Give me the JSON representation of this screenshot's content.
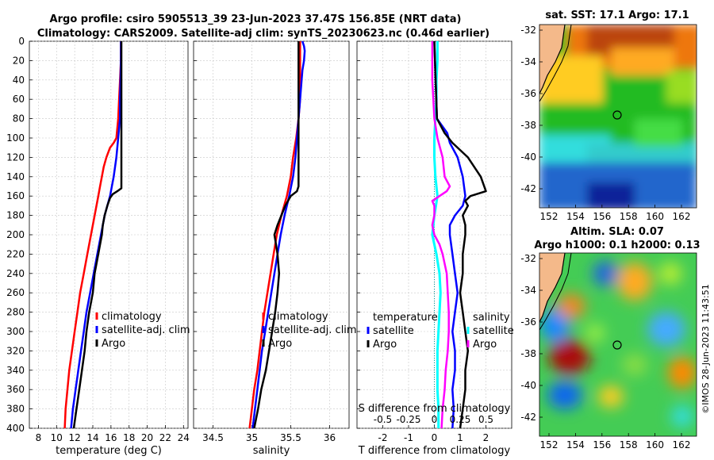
{
  "header": {
    "title_line1": "Argo profile: csiro 5905513_39 23-Jun-2023 37.47S 156.85E (NRT data)",
    "title_line2": "Climatology: CARS2009. Satellite-adj clim: synTS_20230623.nc (0.46d earlier)"
  },
  "depth_ticks": [
    "0",
    "20",
    "40",
    "60",
    "80",
    "100",
    "120",
    "140",
    "160",
    "180",
    "200",
    "220",
    "240",
    "260",
    "280",
    "300",
    "320",
    "340",
    "360",
    "380",
    "400"
  ],
  "colors": {
    "climatology": "#ff0000",
    "satellite": "#0000ff",
    "argo": "#000000",
    "sal_diff": "#ff00ff",
    "sal_sat": "#00ffff",
    "zero_line": "#00aaaa"
  },
  "chart_data": [
    {
      "type": "line",
      "panel": "temperature",
      "xlabel": "temperature (deg C)",
      "ylabel": "depth",
      "xlim": [
        7,
        24.5
      ],
      "ylim": [
        400,
        0
      ],
      "xticks": [
        "8",
        "10",
        "12",
        "14",
        "16",
        "18",
        "20",
        "22",
        "24"
      ],
      "xtick_values": [
        8,
        10,
        12,
        14,
        16,
        18,
        20,
        22,
        24
      ],
      "grid": true,
      "legend": [
        "climatology",
        "satellite-adj. clim",
        "Argo"
      ],
      "series": [
        {
          "name": "climatology",
          "depth": [
            0,
            10,
            20,
            40,
            60,
            80,
            100,
            105,
            110,
            120,
            130,
            140,
            150,
            160,
            180,
            200,
            220,
            240,
            260,
            280,
            300,
            320,
            340,
            360,
            380,
            400
          ],
          "values": [
            17.1,
            17.1,
            17.1,
            17.0,
            16.9,
            16.8,
            16.6,
            16.3,
            15.9,
            15.5,
            15.2,
            15.0,
            14.8,
            14.6,
            14.2,
            13.8,
            13.4,
            13.0,
            12.6,
            12.3,
            12.0,
            11.7,
            11.4,
            11.2,
            11.0,
            10.9
          ]
        },
        {
          "name": "satellite-adj. clim",
          "depth": [
            0,
            20,
            40,
            60,
            80,
            90,
            100,
            120,
            140,
            160,
            180,
            200,
            220,
            240,
            260,
            280,
            300,
            320,
            340,
            360,
            380,
            400
          ],
          "values": [
            17.1,
            17.1,
            17.05,
            17.0,
            17.0,
            16.9,
            16.8,
            16.6,
            16.3,
            15.9,
            15.3,
            14.9,
            14.5,
            14.1,
            13.7,
            13.3,
            13.0,
            12.7,
            12.4,
            12.1,
            11.8,
            11.6
          ]
        },
        {
          "name": "Argo",
          "depth": [
            0,
            20,
            40,
            60,
            80,
            100,
            120,
            140,
            152,
            155,
            158,
            162,
            170,
            180,
            190,
            200,
            220,
            240,
            260,
            280,
            300,
            320,
            340,
            360,
            380,
            400
          ],
          "values": [
            17.15,
            17.15,
            17.15,
            17.15,
            17.15,
            17.15,
            17.15,
            17.15,
            17.15,
            16.7,
            16.2,
            15.9,
            15.6,
            15.3,
            15.1,
            15.0,
            14.6,
            14.2,
            14.0,
            13.6,
            13.3,
            13.1,
            12.8,
            12.5,
            12.2,
            11.9
          ]
        }
      ]
    },
    {
      "type": "line",
      "panel": "salinity",
      "xlabel": "salinity",
      "ylabel": "depth",
      "xlim": [
        34.25,
        36.25
      ],
      "ylim": [
        400,
        0
      ],
      "xticks": [
        "34.5",
        "35",
        "35.5",
        "36"
      ],
      "xtick_values": [
        34.5,
        35,
        35.5,
        36
      ],
      "grid": true,
      "legend": [
        "climatology",
        "satellite-adj. clim",
        "Argo"
      ],
      "series": [
        {
          "name": "climatology",
          "depth": [
            0,
            20,
            40,
            60,
            80,
            100,
            120,
            140,
            160,
            180,
            200,
            220,
            240,
            260,
            280,
            300,
            320,
            340,
            360,
            380,
            400
          ],
          "values": [
            35.62,
            35.62,
            35.62,
            35.62,
            35.6,
            35.57,
            35.53,
            35.5,
            35.45,
            35.38,
            35.32,
            35.28,
            35.24,
            35.2,
            35.16,
            35.13,
            35.1,
            35.07,
            35.03,
            35.0,
            34.97
          ]
        },
        {
          "name": "satellite-adj. clim",
          "depth": [
            0,
            5,
            10,
            20,
            30,
            40,
            60,
            80,
            100,
            120,
            140,
            160,
            180,
            200,
            220,
            240,
            260,
            280,
            300,
            320,
            340,
            360,
            380,
            400
          ],
          "values": [
            35.65,
            35.67,
            35.68,
            35.67,
            35.65,
            35.64,
            35.62,
            35.6,
            35.58,
            35.56,
            35.53,
            35.48,
            35.42,
            35.37,
            35.33,
            35.29,
            35.25,
            35.21,
            35.17,
            35.13,
            35.1,
            35.07,
            35.04,
            35.01
          ]
        },
        {
          "name": "Argo",
          "depth": [
            0,
            20,
            40,
            60,
            80,
            100,
            120,
            140,
            150,
            155,
            160,
            170,
            180,
            190,
            200,
            210,
            220,
            240,
            260,
            280,
            300,
            320,
            340,
            360,
            380,
            400
          ],
          "values": [
            35.6,
            35.6,
            35.6,
            35.6,
            35.6,
            35.6,
            35.6,
            35.6,
            35.6,
            35.58,
            35.5,
            35.43,
            35.38,
            35.33,
            35.29,
            35.31,
            35.33,
            35.35,
            35.33,
            35.3,
            35.26,
            35.22,
            35.18,
            35.12,
            35.08,
            35.03
          ]
        }
      ]
    },
    {
      "type": "line",
      "panel": "difference",
      "xlabel": "T difference from climatology",
      "xlabel_top": "S difference from climatology",
      "ylabel": "depth",
      "xlim": [
        -3,
        3
      ],
      "ylim": [
        400,
        0
      ],
      "xticks": [
        "-2",
        "-1",
        "0",
        "1",
        "2"
      ],
      "xtick_values": [
        -2,
        -1,
        0,
        1,
        2
      ],
      "sticks": [
        "-0.5",
        "-0.25",
        "0",
        "0.25",
        "0.5"
      ],
      "stick_values": [
        -0.5,
        -0.25,
        0,
        0.25,
        0.5
      ],
      "grid": true,
      "legend_left_title": "temperature",
      "legend_right_title": "salinity",
      "legend_left": [
        "satellite",
        "Argo"
      ],
      "legend_right": [
        "satellite",
        "Argo"
      ],
      "series": [
        {
          "name": "T satellite",
          "depth": [
            0,
            40,
            80,
            95,
            105,
            120,
            140,
            160,
            170,
            180,
            190,
            200,
            220,
            240,
            260,
            280,
            300,
            320,
            340,
            360,
            380,
            400
          ],
          "values": [
            0.0,
            0.05,
            0.1,
            0.5,
            0.6,
            0.9,
            1.1,
            1.2,
            1.1,
            0.8,
            0.6,
            0.6,
            0.7,
            0.8,
            0.9,
            0.8,
            0.7,
            0.8,
            0.8,
            0.7,
            0.75,
            0.7
          ]
        },
        {
          "name": "T Argo",
          "depth": [
            0,
            40,
            80,
            95,
            105,
            120,
            140,
            155,
            160,
            165,
            170,
            180,
            190,
            200,
            220,
            240,
            260,
            280,
            300,
            320,
            340,
            360,
            380,
            400
          ],
          "values": [
            0.0,
            0.05,
            0.1,
            0.4,
            0.7,
            1.3,
            1.8,
            2.0,
            1.4,
            1.2,
            1.3,
            1.1,
            1.2,
            1.2,
            1.1,
            1.1,
            1.0,
            1.1,
            1.2,
            1.3,
            1.2,
            1.2,
            1.1,
            1.0
          ]
        },
        {
          "name": "S satellite",
          "depth": [
            0,
            20,
            40,
            60,
            80,
            100,
            120,
            140,
            160,
            180,
            200,
            220,
            240,
            260,
            280,
            300,
            320,
            340,
            360,
            380,
            400
          ],
          "values": [
            0.03,
            0.03,
            0.02,
            0.02,
            0.01,
            0.0,
            0.0,
            0.01,
            0.03,
            0.0,
            -0.02,
            0.02,
            0.05,
            0.06,
            0.05,
            0.04,
            0.03,
            0.03,
            0.03,
            0.04,
            0.04
          ]
        },
        {
          "name": "S Argo",
          "depth": [
            0,
            20,
            40,
            60,
            80,
            100,
            120,
            140,
            150,
            155,
            160,
            165,
            170,
            180,
            190,
            200,
            210,
            220,
            240,
            260,
            280,
            300,
            320,
            340,
            360,
            380,
            400
          ],
          "values": [
            -0.02,
            -0.02,
            -0.02,
            -0.01,
            0.0,
            0.03,
            0.08,
            0.1,
            0.15,
            0.12,
            0.05,
            -0.02,
            0.0,
            0.0,
            -0.02,
            0.0,
            0.05,
            0.08,
            0.12,
            0.13,
            0.14,
            0.14,
            0.13,
            0.11,
            0.1,
            0.08,
            0.07
          ]
        }
      ]
    }
  ],
  "maps": {
    "sst": {
      "title": "sat. SST: 17.1 Argo: 17.1",
      "yticks": [
        "-32",
        "-34",
        "-36",
        "-38",
        "-40",
        "-42"
      ],
      "xticks": [
        "152",
        "154",
        "156",
        "158",
        "160",
        "162"
      ]
    },
    "sla": {
      "title_line1": "Altim. SLA: 0.07",
      "title_line2": "Argo h1000: 0.1 h2000: 0.13",
      "yticks": [
        "-32",
        "-34",
        "-36",
        "-38",
        "-40",
        "-42"
      ],
      "xticks": [
        "152",
        "154",
        "156",
        "158",
        "160",
        "162"
      ]
    }
  },
  "watermark": "©IMOS 28-Jun-2023 11:43:51"
}
